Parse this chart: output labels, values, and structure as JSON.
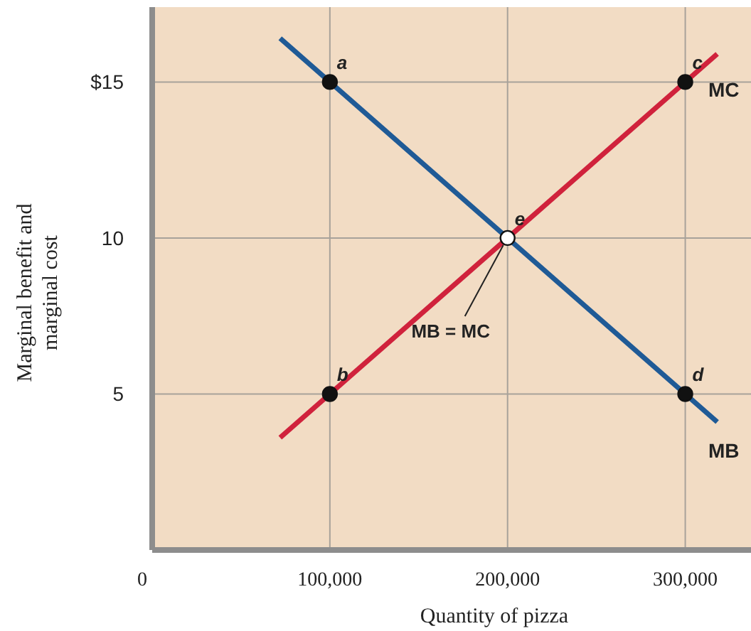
{
  "chart_data": {
    "type": "line",
    "xlabel": "Quantity of pizza",
    "ylabel": "Marginal benefit and marginal cost",
    "xlim": [
      0,
      337000
    ],
    "ylim": [
      0,
      17.4
    ],
    "xticks": [
      {
        "value": 0,
        "label": "0"
      },
      {
        "value": 100000,
        "label": "100,000"
      },
      {
        "value": 200000,
        "label": "200,000"
      },
      {
        "value": 300000,
        "label": "300,000"
      }
    ],
    "yticks": [
      5,
      10,
      {
        "value": 15,
        "label": "$15"
      }
    ],
    "grid": true,
    "series": [
      {
        "name": "MB",
        "color": "#1f5a96",
        "x": [
          72000,
          318000
        ],
        "values": [
          16.4,
          4.1
        ]
      },
      {
        "name": "MC",
        "color": "#d0223c",
        "x": [
          72000,
          318000
        ],
        "values": [
          3.6,
          15.9
        ]
      },
      {
        "type": "scatter",
        "marker": "circle",
        "x": [
          100000,
          100000,
          300000,
          300000,
          200000
        ],
        "values": [
          15,
          5,
          15,
          5,
          10
        ],
        "colors": [
          "#111111",
          "#111111",
          "#111111",
          "#111111",
          "#ffffff"
        ]
      }
    ],
    "annotations": [
      {
        "text": "a",
        "x": 100000,
        "y": 15
      },
      {
        "text": "b",
        "x": 100000,
        "y": 5
      },
      {
        "text": "c",
        "x": 300000,
        "y": 15
      },
      {
        "text": "d",
        "x": 300000,
        "y": 5
      },
      {
        "text": "e",
        "x": 200000,
        "y": 10
      },
      {
        "text": "MB = MC",
        "x": 200000,
        "y": 10
      }
    ]
  }
}
